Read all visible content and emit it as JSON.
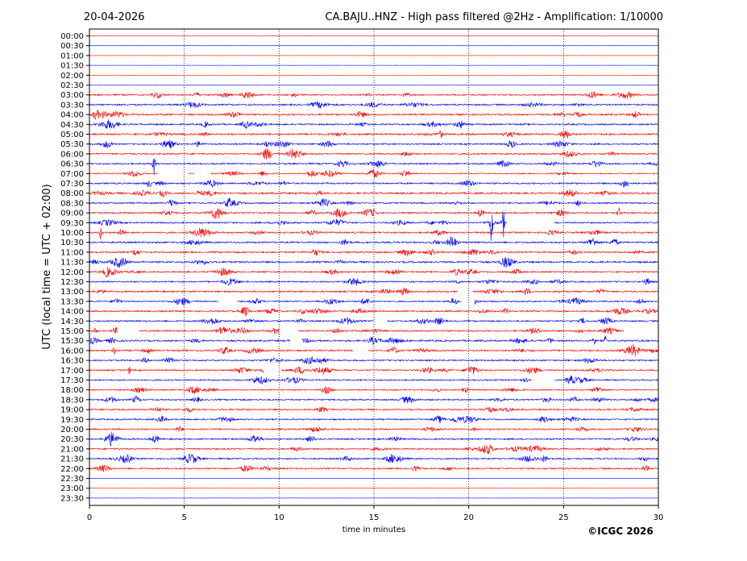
{
  "header": {
    "date": "20-04-2026",
    "title": "CA.BAJU..HNZ - High pass filtered @2Hz - Amplification: 1/10000"
  },
  "footer": {
    "copyright": "©ICGC 2026"
  },
  "colors": {
    "trace_a": "#ff0000",
    "trace_b": "#0000ff",
    "axis": "#000000",
    "grid": "#000000",
    "background": "#ffffff"
  },
  "chart_data": {
    "type": "line",
    "title": "CA.BAJU..HNZ - High pass filtered @2Hz - Amplification: 1/10000",
    "xlabel": "time in minutes",
    "ylabel": "UTC (local time = UTC + 02:00)",
    "xlim": [
      0,
      30
    ],
    "xticks": [
      "0",
      "5",
      "10",
      "15",
      "20",
      "25",
      "30"
    ],
    "grid": "vertical dotted lines at 5-minute intervals",
    "rows": [
      "00:00",
      "00:30",
      "01:00",
      "01:30",
      "02:00",
      "02:30",
      "03:00",
      "03:30",
      "04:00",
      "04:30",
      "05:00",
      "05:30",
      "06:00",
      "06:30",
      "07:00",
      "07:30",
      "08:00",
      "08:30",
      "09:00",
      "09:30",
      "10:00",
      "10:30",
      "11:00",
      "11:30",
      "12:00",
      "12:30",
      "13:00",
      "13:30",
      "14:00",
      "14:30",
      "15:00",
      "15:30",
      "16:00",
      "16:30",
      "17:00",
      "17:30",
      "18:00",
      "18:30",
      "19:00",
      "19:30",
      "20:00",
      "20:30",
      "21:00",
      "21:30",
      "22:00",
      "22:30",
      "23:00",
      "23:30"
    ],
    "row_colors": "alternating red / blue starting with red at 00:00",
    "noise_level": [
      0.2,
      0.2,
      0.2,
      0.2,
      0.2,
      0.2,
      1.5,
      1.7,
      1.8,
      1.7,
      1.9,
      1.6,
      1.6,
      1.6,
      1.2,
      1.7,
      1.9,
      1.6,
      1.6,
      1.6,
      1.7,
      1.8,
      1.8,
      1.9,
      1.6,
      1.6,
      1.7,
      1.6,
      1.7,
      1.6,
      1.6,
      1.8,
      1.7,
      1.6,
      1.5,
      1.5,
      1.4,
      1.6,
      1.6,
      1.5,
      1.6,
      1.6,
      1.6,
      1.6,
      1.6,
      0.2,
      0.2,
      0.2
    ],
    "events": [
      {
        "row": "06:30",
        "minute": 3.4,
        "amplitude": 22
      },
      {
        "row": "10:00",
        "minute": 0.6,
        "amplitude": 9
      },
      {
        "row": "09:30",
        "minute": 21.2,
        "amplitude": 34
      },
      {
        "row": "09:30",
        "minute": 21.8,
        "amplitude": 36
      },
      {
        "row": "09:00",
        "minute": 27.9,
        "amplitude": 12
      },
      {
        "row": "15:00",
        "minute": 0.3,
        "amplitude": 4
      },
      {
        "row": "16:00",
        "minute": 1.3,
        "amplitude": 6
      },
      {
        "row": "17:00",
        "minute": 2.1,
        "amplitude": 5
      },
      {
        "row": "15:30",
        "minute": 26.6,
        "amplitude": 6
      },
      {
        "row": "15:30",
        "minute": 27.2,
        "amplitude": 6
      }
    ],
    "gaps": [
      {
        "row": "07:00",
        "from": 3.6,
        "to": 5.2
      },
      {
        "row": "07:00",
        "from": 5.5,
        "to": 6.4
      },
      {
        "row": "13:30",
        "from": 6.8,
        "to": 7.8
      },
      {
        "row": "13:00",
        "from": 19.4,
        "to": 20.2
      },
      {
        "row": "13:30",
        "from": 19.6,
        "to": 20.3
      },
      {
        "row": "14:30",
        "from": 15.0,
        "to": 15.7
      },
      {
        "row": "15:00",
        "from": 1.5,
        "to": 2.6
      },
      {
        "row": "15:00",
        "from": 10.0,
        "to": 11.0
      },
      {
        "row": "15:30",
        "from": 10.6,
        "to": 11.2
      },
      {
        "row": "16:00",
        "from": 13.9,
        "to": 14.7
      },
      {
        "row": "17:00",
        "from": 9.2,
        "to": 10.1
      },
      {
        "row": "17:30",
        "from": 23.3,
        "to": 24.5
      },
      {
        "row": "09:30",
        "from": 22.0,
        "to": 24.5
      },
      {
        "row": "15:00",
        "from": 28.2,
        "to": 30.0
      }
    ]
  }
}
